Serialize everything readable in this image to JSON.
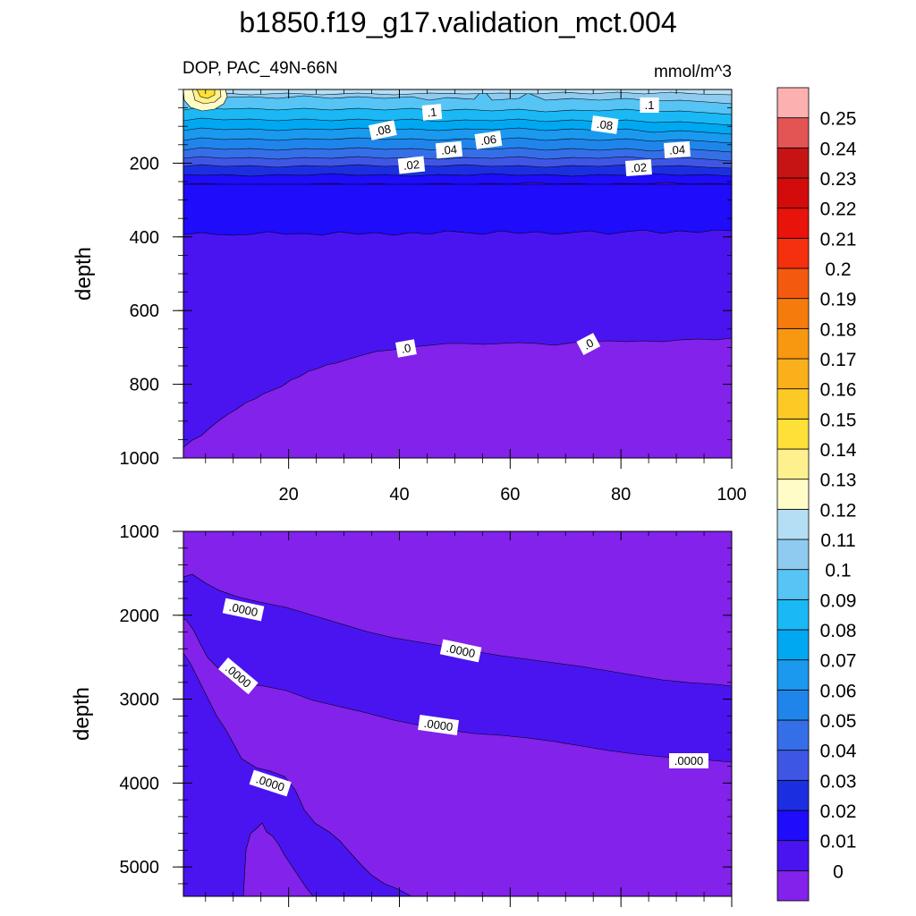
{
  "chart_data": {
    "title": "b1850.f19_g17.validation_mct.004",
    "type": "contour",
    "panels": [
      {
        "subtitle_left": "DOP, PAC_49N-66N",
        "subtitle_right": "mmol/m^3",
        "ylabel": "depth",
        "xlim": [
          1,
          100
        ],
        "ylim": [
          1000,
          0
        ],
        "xticks": [
          "20",
          "40",
          "60",
          "80",
          "100"
        ],
        "yticks": [
          "200",
          "400",
          "600",
          "800",
          "1000"
        ],
        "contour_labels": [
          ".1",
          ".08",
          ".04",
          ".06",
          ".02",
          ".08",
          ".1",
          ".04",
          ".02",
          ".0",
          ".0"
        ]
      },
      {
        "ylabel": "depth",
        "xlim": [
          1,
          100
        ],
        "ylim": [
          5350,
          1000
        ],
        "yticks": [
          "1000",
          "2000",
          "3000",
          "4000",
          "5000"
        ],
        "contour_labels": [
          ".0000",
          ".0000",
          ".0000",
          ".0000",
          ".0000",
          ".0000"
        ]
      }
    ],
    "colorbar": {
      "labels": [
        "0",
        "0.01",
        "0.02",
        "0.03",
        "0.04",
        "0.05",
        "0.06",
        "0.07",
        "0.08",
        "0.09",
        "0.1",
        "0.11",
        "0.12",
        "0.13",
        "0.14",
        "0.15",
        "0.16",
        "0.17",
        "0.18",
        "0.19",
        "0.2",
        "0.21",
        "0.22",
        "0.23",
        "0.24",
        "0.25"
      ],
      "colors": [
        "#8222ea",
        "#4a14f0",
        "#1e0cfa",
        "#1c2fe0",
        "#3f56e5",
        "#356fe8",
        "#1f85ea",
        "#1a99ef",
        "#00a8f2",
        "#1ab9f5",
        "#56c4f5",
        "#8fcbf0",
        "#b4def4",
        "#fffcc8",
        "#fff08e",
        "#ffe038",
        "#fcc925",
        "#fab01a",
        "#f89810",
        "#f57c0c",
        "#f35a10",
        "#f4300e",
        "#e8130b",
        "#d40b0b",
        "#c61414",
        "#e35454",
        "#fdb0b0"
      ]
    }
  }
}
